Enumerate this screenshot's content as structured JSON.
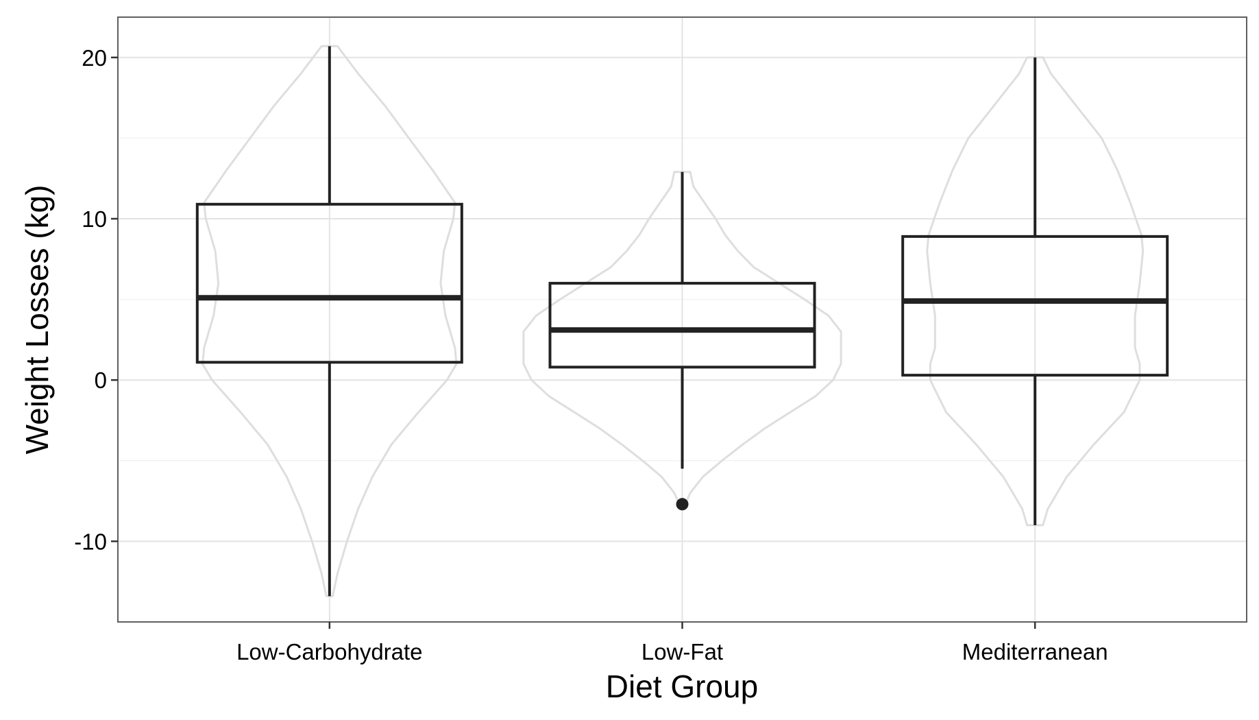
{
  "chart_data": {
    "type": "box",
    "xlabel": "Diet Group",
    "ylabel": "Weight Losses (kg)",
    "ylim": [
      -15,
      22.5
    ],
    "yticks": [
      -10,
      0,
      10,
      20
    ],
    "grid": true,
    "categories": [
      "Low-Carbohydrate",
      "Low-Fat",
      "Mediterranean"
    ],
    "boxes": [
      {
        "category": "Low-Carbohydrate",
        "whisker_low": -13.4,
        "q1": 1.1,
        "median": 5.1,
        "q3": 10.9,
        "whisker_high": 20.7,
        "outliers": []
      },
      {
        "category": "Low-Fat",
        "whisker_low": -5.5,
        "q1": 0.8,
        "median": 3.1,
        "q3": 6.0,
        "whisker_high": 12.9,
        "outliers": [
          -7.7
        ]
      },
      {
        "category": "Mediterranean",
        "whisker_low": -9.0,
        "q1": 0.3,
        "median": 4.9,
        "q3": 8.9,
        "whisker_high": 20.0,
        "outliers": []
      }
    ],
    "violins": [
      {
        "category": "Low-Carbohydrate",
        "density": [
          [
            -13.4,
            0.02
          ],
          [
            -12,
            0.05
          ],
          [
            -10,
            0.11
          ],
          [
            -8,
            0.18
          ],
          [
            -6,
            0.27
          ],
          [
            -4,
            0.39
          ],
          [
            -2,
            0.56
          ],
          [
            0,
            0.74
          ],
          [
            1,
            0.8
          ],
          [
            2,
            0.79
          ],
          [
            4,
            0.73
          ],
          [
            6,
            0.7
          ],
          [
            8,
            0.72
          ],
          [
            10,
            0.78
          ],
          [
            11,
            0.79
          ],
          [
            13,
            0.65
          ],
          [
            15,
            0.5
          ],
          [
            17,
            0.35
          ],
          [
            19,
            0.18
          ],
          [
            20.7,
            0.05
          ]
        ]
      },
      {
        "category": "Low-Fat",
        "density": [
          [
            -7.7,
            0.02
          ],
          [
            -7,
            0.05
          ],
          [
            -6,
            0.13
          ],
          [
            -5,
            0.25
          ],
          [
            -4,
            0.38
          ],
          [
            -3,
            0.52
          ],
          [
            -2,
            0.68
          ],
          [
            -1,
            0.84
          ],
          [
            0,
            0.95
          ],
          [
            1,
            1.0
          ],
          [
            2,
            1.0
          ],
          [
            3,
            1.0
          ],
          [
            4,
            0.92
          ],
          [
            5,
            0.77
          ],
          [
            6,
            0.61
          ],
          [
            7,
            0.45
          ],
          [
            8,
            0.35
          ],
          [
            9,
            0.27
          ],
          [
            10,
            0.21
          ],
          [
            11,
            0.14
          ],
          [
            12,
            0.07
          ],
          [
            12.9,
            0.05
          ]
        ]
      },
      {
        "category": "Mediterranean",
        "density": [
          [
            -9,
            0.05
          ],
          [
            -8,
            0.08
          ],
          [
            -6,
            0.2
          ],
          [
            -4,
            0.37
          ],
          [
            -2,
            0.56
          ],
          [
            0,
            0.66
          ],
          [
            1,
            0.66
          ],
          [
            2,
            0.63
          ],
          [
            4,
            0.63
          ],
          [
            6,
            0.66
          ],
          [
            8,
            0.68
          ],
          [
            9,
            0.67
          ],
          [
            11,
            0.6
          ],
          [
            13,
            0.52
          ],
          [
            15,
            0.42
          ],
          [
            17,
            0.26
          ],
          [
            19,
            0.1
          ],
          [
            20,
            0.05
          ]
        ]
      }
    ]
  }
}
